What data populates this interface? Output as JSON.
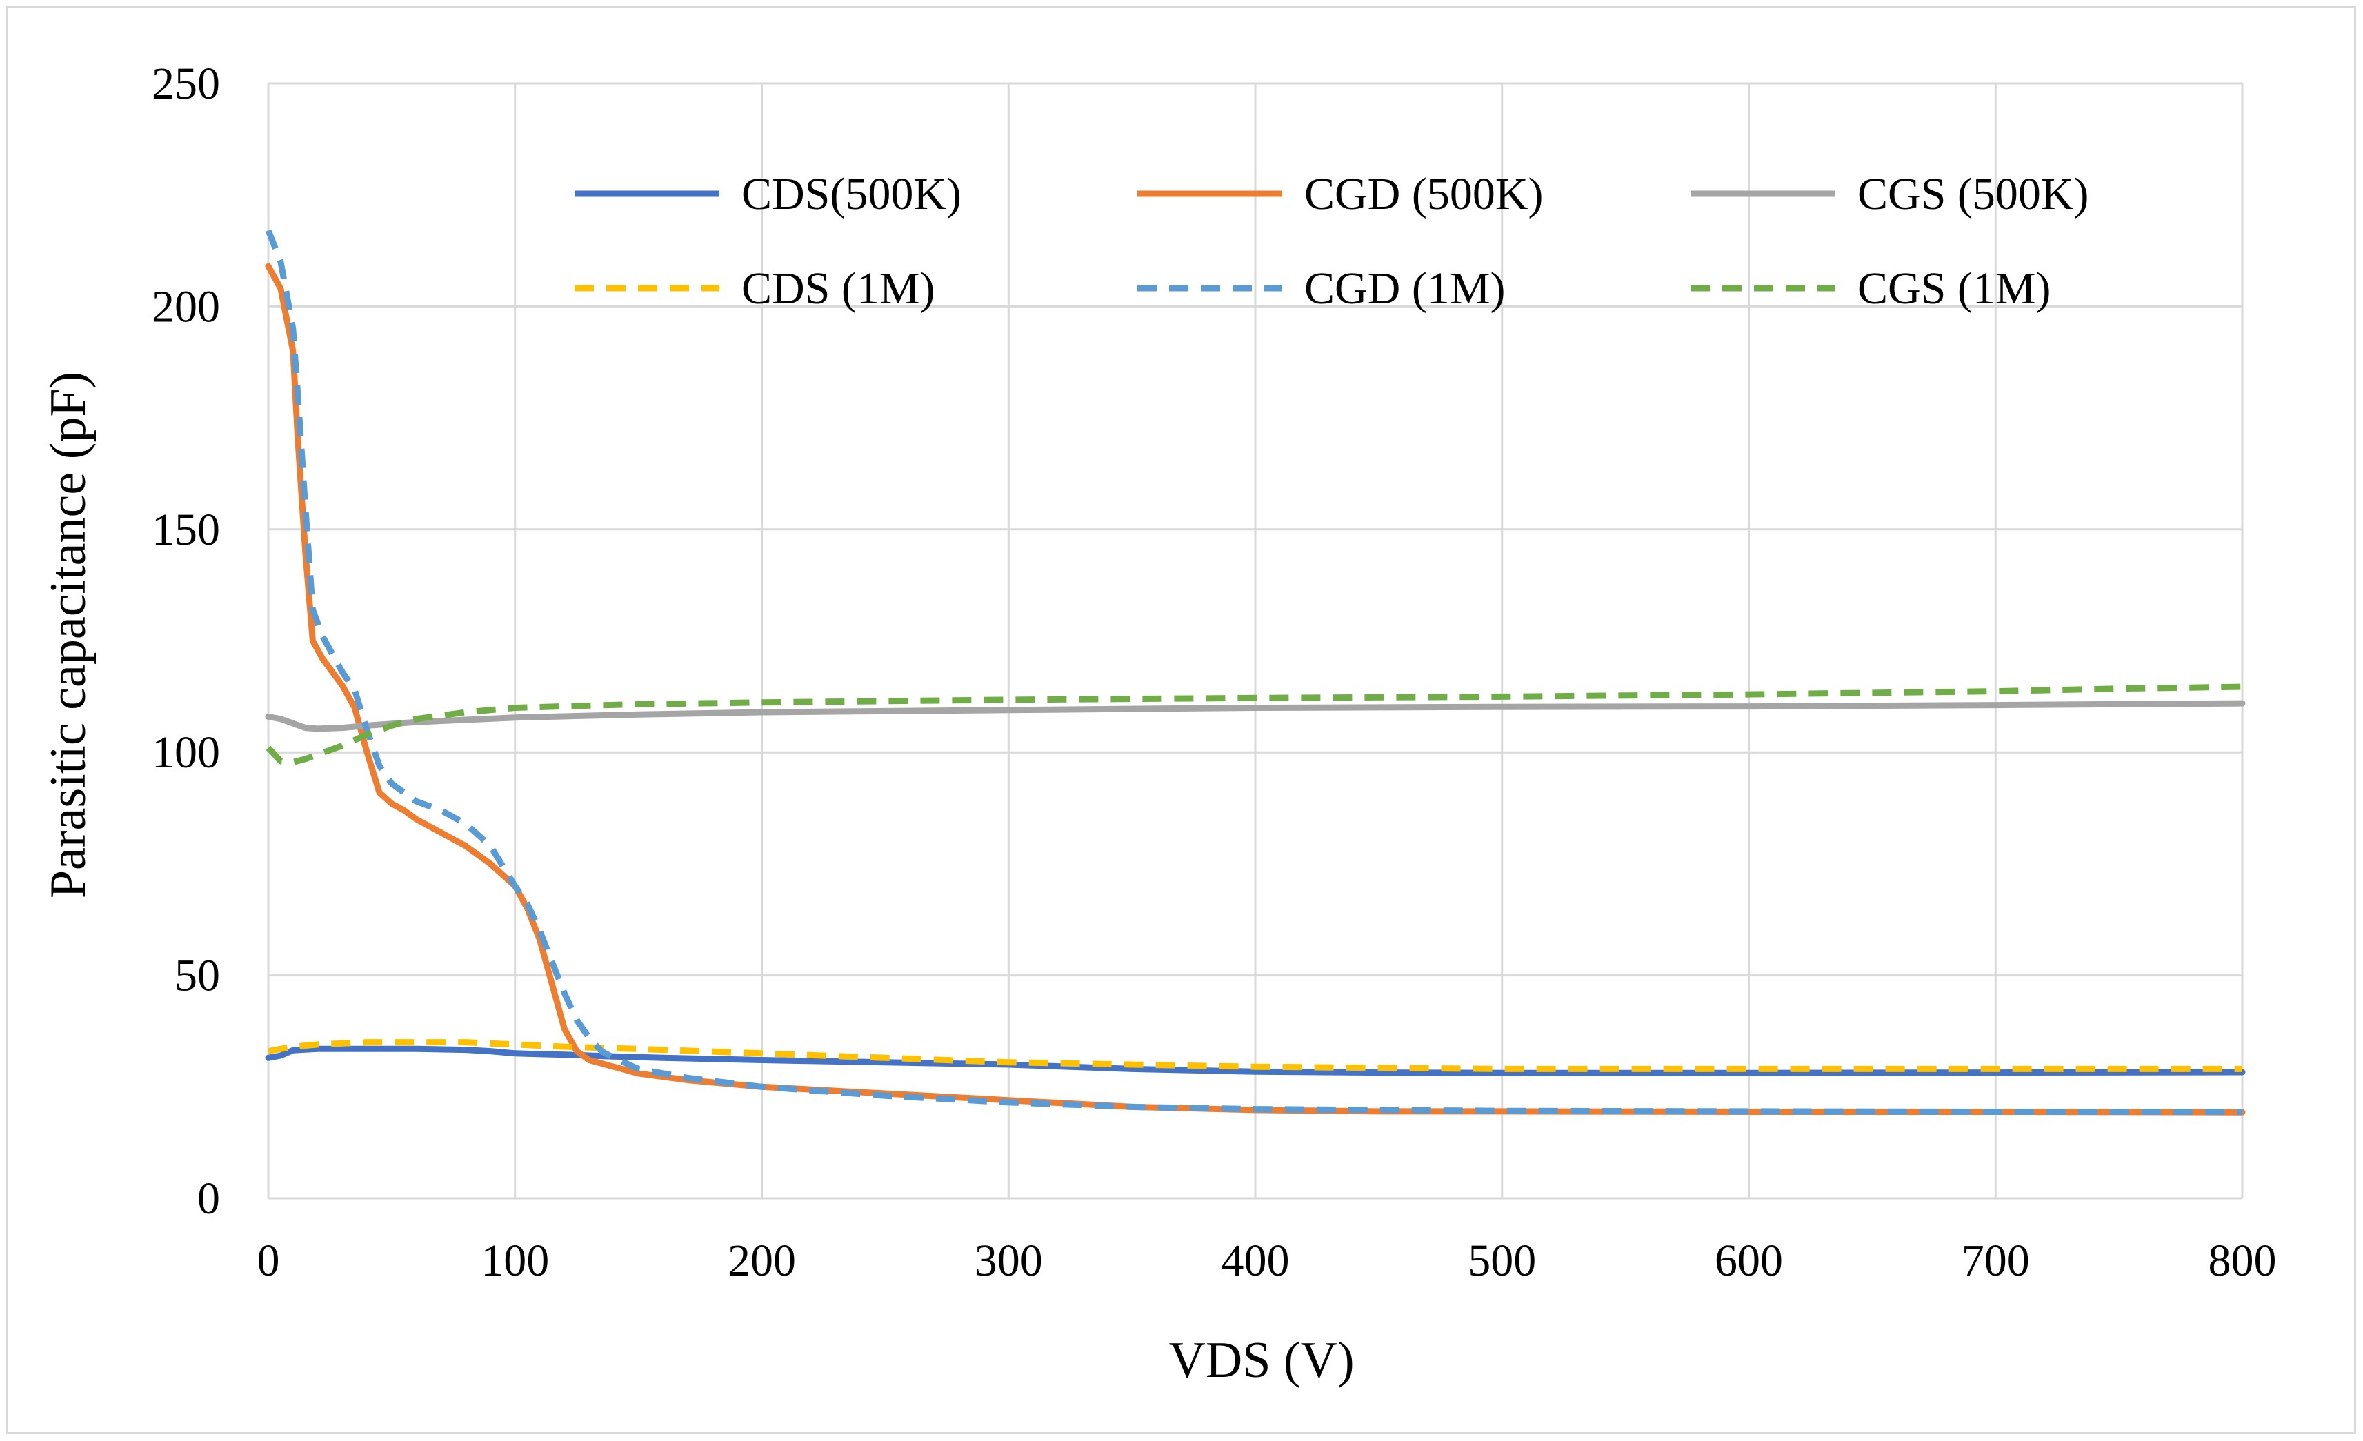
{
  "chart_data": {
    "type": "line",
    "title": "",
    "xlabel": "VDS (V)",
    "ylabel": "Parasitic capacitance (pF)",
    "xlim": [
      0,
      800
    ],
    "ylim": [
      0,
      250
    ],
    "xticks": [
      0,
      100,
      200,
      300,
      400,
      500,
      600,
      700,
      800
    ],
    "yticks": [
      0,
      50,
      100,
      150,
      200,
      250
    ],
    "grid": true,
    "legend_position": "top",
    "series": [
      {
        "name": "CDS(500K)",
        "color": "#4472c4",
        "dash": "solid",
        "x": [
          0,
          5,
          10,
          20,
          40,
          60,
          80,
          90,
          100,
          120,
          140,
          160,
          200,
          250,
          300,
          350,
          400,
          450,
          500,
          600,
          700,
          800
        ],
        "y": [
          31.5,
          32,
          33.2,
          33.5,
          33.5,
          33.5,
          33.3,
          33,
          32.5,
          32.2,
          31.8,
          31.5,
          31,
          30.5,
          30,
          29,
          28.4,
          28.2,
          28.1,
          28.1,
          28.2,
          28.3
        ]
      },
      {
        "name": "CGD (500K)",
        "color": "#ed7d31",
        "dash": "solid",
        "x": [
          0,
          5,
          10,
          12,
          15,
          18,
          22,
          26,
          30,
          35,
          40,
          45,
          50,
          55,
          60,
          70,
          80,
          90,
          100,
          105,
          110,
          115,
          120,
          125,
          130,
          140,
          150,
          170,
          200,
          250,
          300,
          350,
          400,
          450,
          500,
          600,
          700,
          800
        ],
        "y": [
          209,
          204,
          190,
          170,
          145,
          125,
          121,
          118,
          115,
          110,
          100,
          91,
          88.5,
          87,
          85,
          82,
          79,
          75,
          70,
          65,
          58,
          48,
          38,
          33,
          31,
          29.5,
          28,
          26.5,
          25,
          23.5,
          22,
          20.5,
          19.8,
          19.5,
          19.5,
          19.4,
          19.4,
          19.3
        ]
      },
      {
        "name": "CGS (500K)",
        "color": "#a5a5a5",
        "dash": "solid",
        "x": [
          0,
          5,
          10,
          15,
          20,
          30,
          40,
          60,
          80,
          100,
          150,
          200,
          300,
          400,
          500,
          600,
          700,
          800
        ],
        "y": [
          108,
          107.5,
          106.5,
          105.5,
          105.3,
          105.5,
          106,
          106.8,
          107.3,
          107.8,
          108.5,
          109,
          109.5,
          110,
          110.2,
          110.3,
          110.6,
          111
        ]
      },
      {
        "name": "CDS (1M)",
        "color": "#ffc000",
        "dash": "dashed",
        "x": [
          0,
          5,
          10,
          20,
          40,
          60,
          80,
          100,
          120,
          150,
          200,
          250,
          300,
          350,
          400,
          500,
          600,
          700,
          800
        ],
        "y": [
          33,
          33.5,
          34,
          34.5,
          35,
          35,
          35,
          34.5,
          34,
          33.5,
          32.5,
          31.5,
          30.5,
          30,
          29.5,
          29,
          29,
          29,
          29
        ]
      },
      {
        "name": "CGD (1M)",
        "color": "#5b9bd5",
        "dash": "dashed",
        "x": [
          0,
          5,
          10,
          12,
          15,
          18,
          22,
          26,
          30,
          35,
          40,
          45,
          50,
          55,
          60,
          70,
          80,
          90,
          100,
          105,
          110,
          115,
          120,
          125,
          130,
          135,
          140,
          150,
          170,
          200,
          250,
          300,
          350,
          400,
          450,
          500,
          600,
          700,
          800
        ],
        "y": [
          217,
          210,
          195,
          180,
          155,
          132,
          126,
          122,
          118,
          114,
          105,
          97,
          93,
          91,
          89,
          87,
          84,
          79,
          70,
          66,
          60,
          53,
          46,
          40,
          36,
          33,
          31.5,
          29,
          27,
          25,
          23,
          21.5,
          20.5,
          20,
          19.8,
          19.6,
          19.5,
          19.4,
          19.4
        ]
      },
      {
        "name": "CGS (1M)",
        "color": "#70ad47",
        "dash": "dashed",
        "x": [
          0,
          5,
          10,
          15,
          20,
          30,
          40,
          50,
          60,
          80,
          100,
          150,
          200,
          300,
          400,
          500,
          600,
          700,
          750,
          800
        ],
        "y": [
          101,
          98,
          97.8,
          98.5,
          99.5,
          101.5,
          104,
          106,
          107.5,
          109,
          110,
          110.8,
          111.2,
          111.8,
          112.2,
          112.5,
          113,
          113.7,
          114.3,
          114.7
        ]
      }
    ]
  }
}
